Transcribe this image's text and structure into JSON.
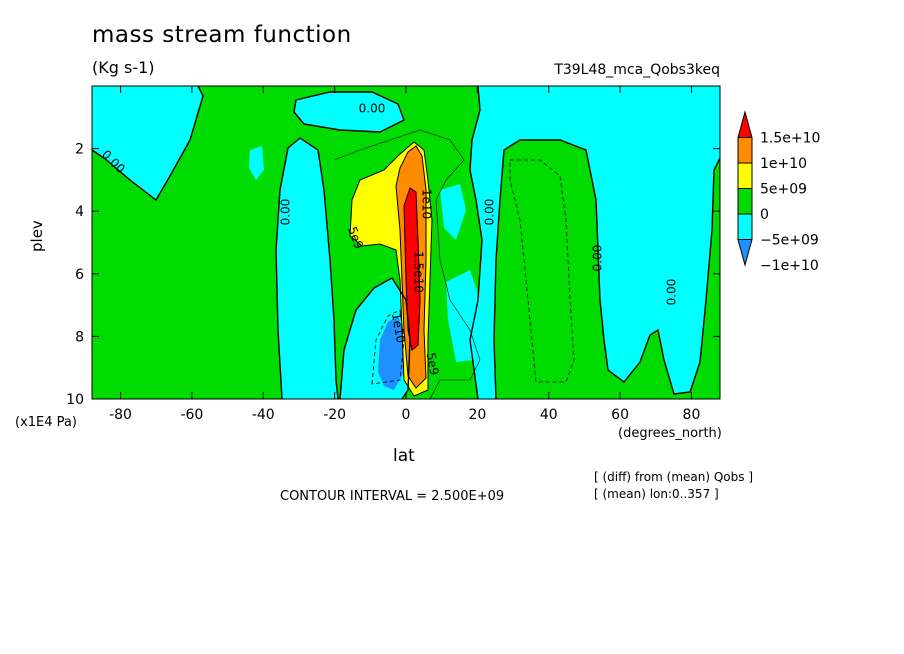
{
  "chart_data": {
    "type": "contour",
    "title": "mass stream function",
    "units": "(Kg s-1)",
    "run_label": "T39L48_mca_Qobs3keq",
    "xlabel": "lat",
    "xunit": "(degrees_north)",
    "ylabel": "plev",
    "yunit": "(x1E4 Pa)",
    "x_ticks": [
      "-80",
      "-60",
      "-40",
      "-20",
      "0",
      "20",
      "40",
      "60",
      "80"
    ],
    "y_ticks": [
      "2",
      "4",
      "6",
      "8",
      "10"
    ],
    "xlim": [
      -88,
      88
    ],
    "ylim": [
      10,
      0
    ],
    "contour_interval": "CONTOUR INTERVAL = 2.500E+09",
    "notes": [
      "[ (diff) from (mean) Qobs ]",
      "[ (mean) lon:0..357 ]"
    ],
    "colorbar": {
      "labels": [
        "1.5e+10",
        "1e+10",
        "5e+09",
        "0",
        "−5e+09",
        "−1e+10"
      ],
      "colors": [
        "#ff0000",
        "#ff8c00",
        "#ffff00",
        "#00dc00",
        "#00ffff",
        "#1e90ff"
      ]
    },
    "contour_labels": [
      "0.00",
      "0.00",
      "0.00",
      "0.00",
      "0.00",
      "0.00",
      "1e10",
      "1.5e10",
      "5e9",
      "1e10",
      "5e9"
    ]
  }
}
